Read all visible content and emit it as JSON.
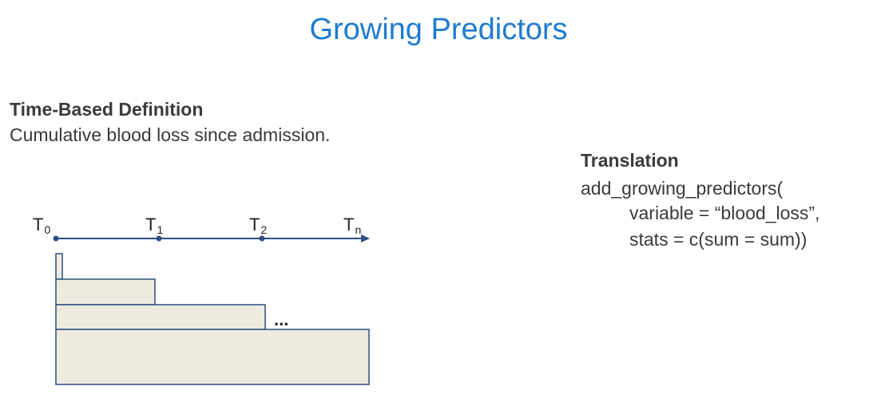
{
  "title": "Growing Predictors",
  "definition": {
    "heading": "Time-Based Definition",
    "body": "Cumulative blood loss since admission."
  },
  "translation": {
    "heading": "Translation",
    "code_lines": [
      "add_growing_predictors(",
      "variable = “blood_loss”,",
      "stats = c(sum = sum))"
    ]
  },
  "timeline": {
    "labels": [
      {
        "main": "T",
        "sub": "0"
      },
      {
        "main": "T",
        "sub": "1"
      },
      {
        "main": "T",
        "sub": "2"
      },
      {
        "main": "T",
        "sub": "n"
      }
    ],
    "ellipsis": "...",
    "colors": {
      "axis": "#2b4f7e",
      "window_fill": "#edebdf",
      "window_stroke": "#2b4f7e"
    }
  }
}
